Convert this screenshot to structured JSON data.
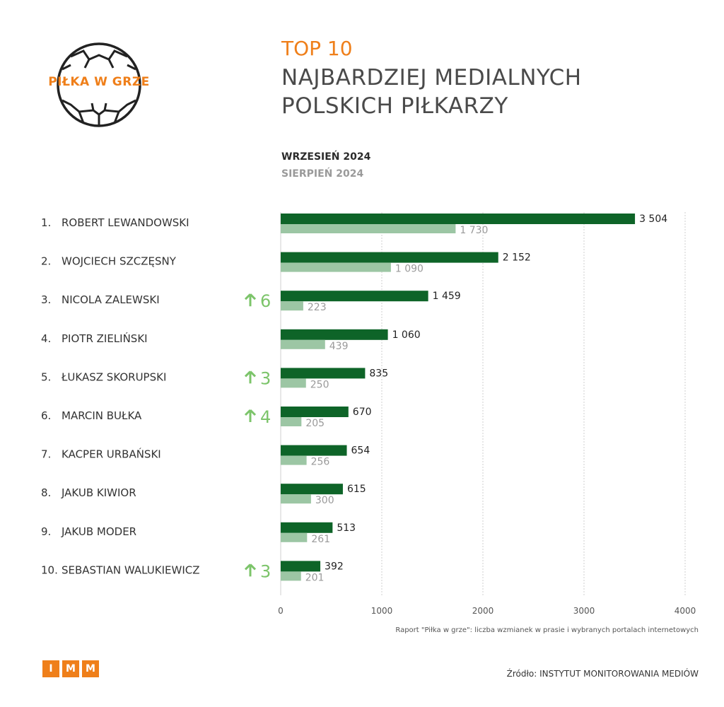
{
  "logo": {
    "text": "PIŁKA W GRZE"
  },
  "header": {
    "top": "TOP 10",
    "title_line1": "NAJBARDZIEJ MEDIALNYCH",
    "title_line2": "POLSKICH PIŁKARZY"
  },
  "legend": {
    "current": "WRZESIEŃ 2024",
    "previous": "SIERPIEŃ 2024"
  },
  "colors": {
    "current": "#0e6428",
    "previous": "#9cc6a4",
    "accent": "#ef7f1a",
    "arrow": "#7cc46a"
  },
  "chart_data": {
    "type": "bar",
    "orientation": "horizontal",
    "categories": [
      {
        "rank": "1.",
        "name": "ROBERT LEWANDOWSKI",
        "change": ""
      },
      {
        "rank": "2.",
        "name": "WOJCIECH SZCZĘSNY",
        "change": ""
      },
      {
        "rank": "3.",
        "name": "NICOLA ZALEWSKI",
        "change": "6"
      },
      {
        "rank": "4.",
        "name": "PIOTR ZIELIŃSKI",
        "change": ""
      },
      {
        "rank": "5.",
        "name": "ŁUKASZ SKORUPSKI",
        "change": "3"
      },
      {
        "rank": "6.",
        "name": "MARCIN BUŁKA",
        "change": "4"
      },
      {
        "rank": "7.",
        "name": "KACPER URBAŃSKI",
        "change": ""
      },
      {
        "rank": "8.",
        "name": "JAKUB KIWIOR",
        "change": ""
      },
      {
        "rank": "9.",
        "name": "JAKUB MODER",
        "change": ""
      },
      {
        "rank": "10.",
        "name": "SEBASTIAN WALUKIEWICZ",
        "change": "3"
      }
    ],
    "series": [
      {
        "name": "WRZESIEŃ 2024",
        "values": [
          3504,
          2152,
          1459,
          1060,
          835,
          670,
          654,
          615,
          513,
          392
        ],
        "labels": [
          "3 504",
          "2 152",
          "1 459",
          "1 060",
          "835",
          "670",
          "654",
          "615",
          "513",
          "392"
        ]
      },
      {
        "name": "SIERPIEŃ 2024",
        "values": [
          1730,
          1090,
          223,
          439,
          250,
          205,
          256,
          300,
          261,
          201
        ],
        "labels": [
          "1 730",
          "1 090",
          "223",
          "439",
          "250",
          "205",
          "256",
          "300",
          "261",
          "201"
        ]
      }
    ],
    "xlim": [
      0,
      4000
    ],
    "xticks": [
      0,
      1000,
      2000,
      3000,
      4000
    ],
    "grid": true
  },
  "footer": {
    "note": "Raport \"Piłka w grze\": liczba wzmianek w prasie i wybranych portalach internetowych",
    "imm_letters": [
      "I",
      "M",
      "M"
    ],
    "source": "Źródło: INSTYTUT MONITOROWANIA MEDIÓW"
  }
}
